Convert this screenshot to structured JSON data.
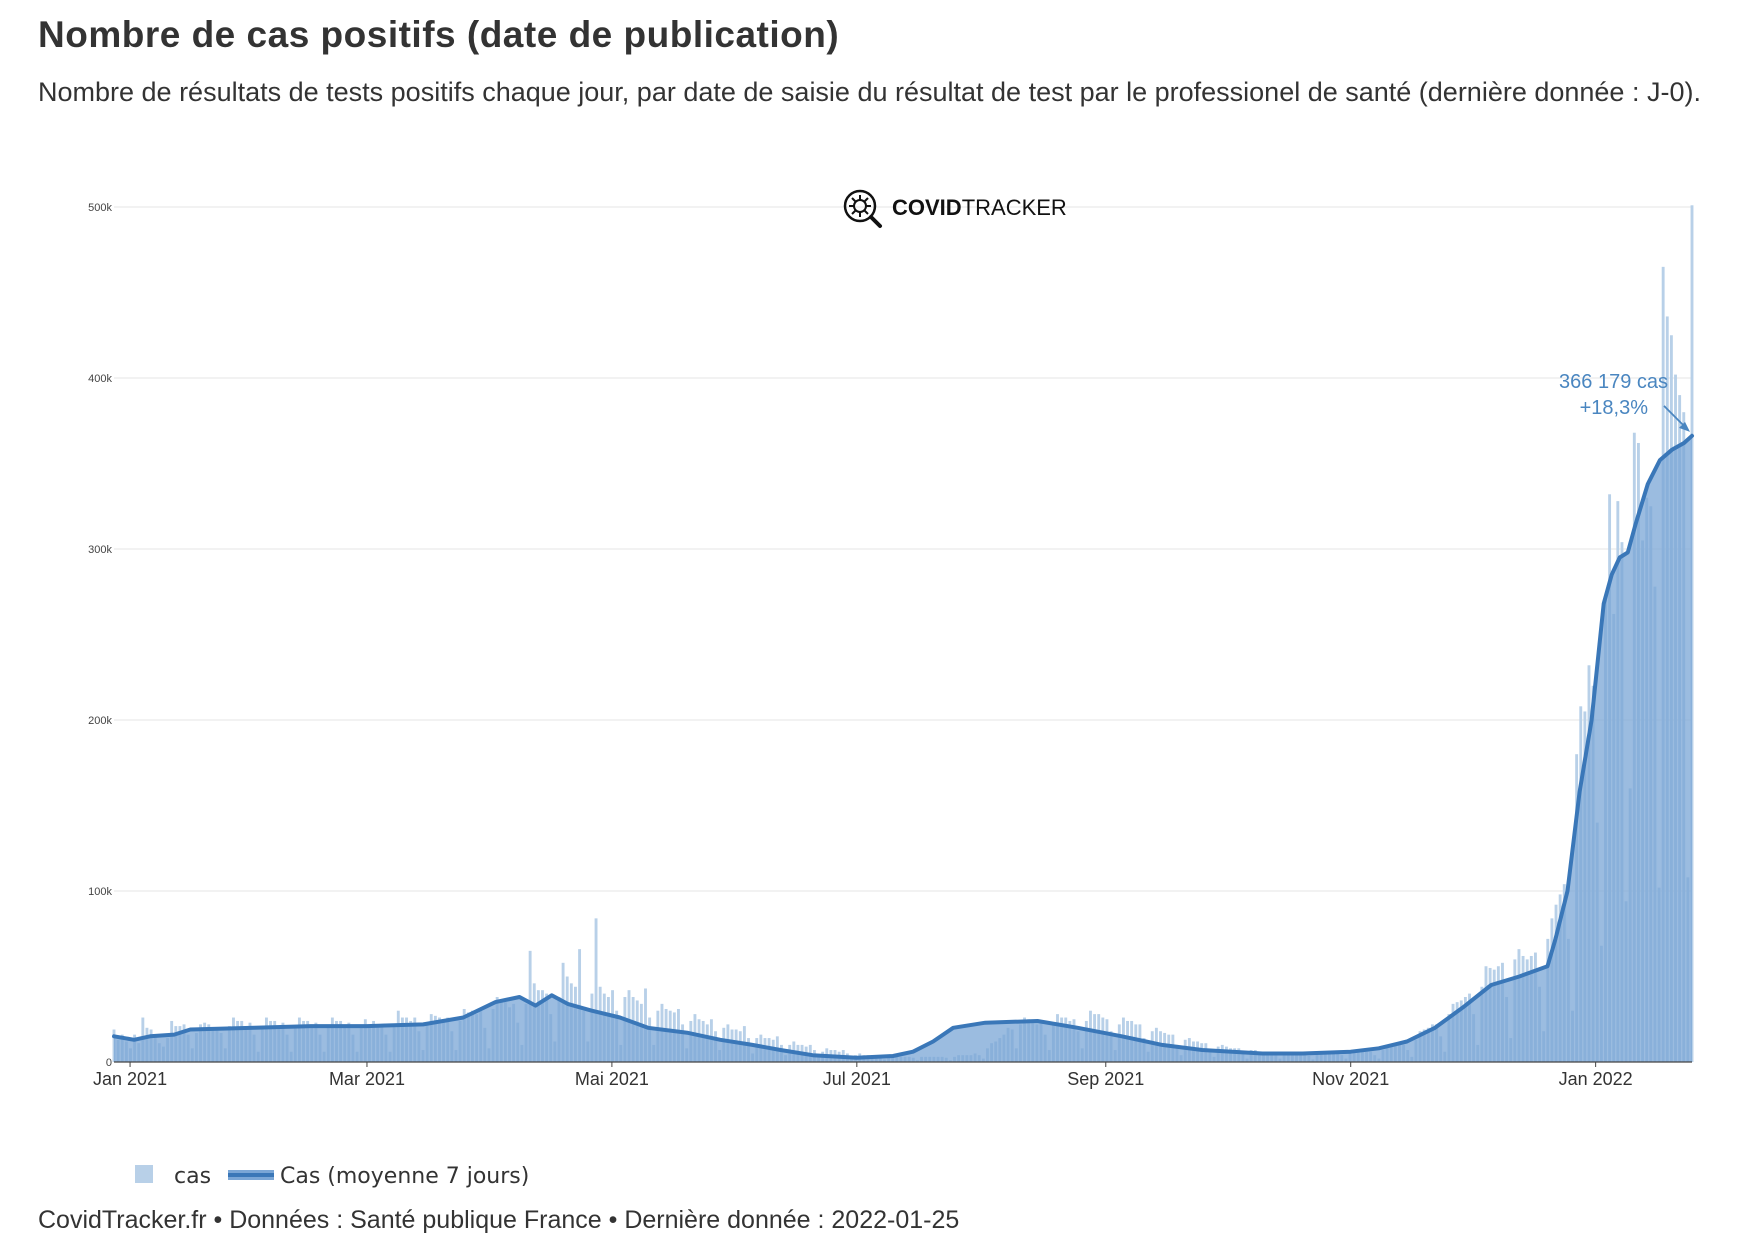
{
  "header": {
    "title": "Nombre de cas positifs (date de publication)",
    "subtitle": "Nombre de résultats de tests positifs chaque jour, par date de saisie du résultat de test par le professionel de santé (dernière donnée : J-0)."
  },
  "logo": {
    "bold": "COVID",
    "light": "TRACKER",
    "icon": "virus-magnifier-icon"
  },
  "footer": {
    "text": "CovidTracker.fr • Données : Santé publique France • Dernière donnée : 2022-01-25"
  },
  "chart_data": {
    "type": "bar",
    "xaxis": {
      "start_date": "2020-12-28",
      "end_date": "2022-01-25",
      "ticks": [
        {
          "label": "Jan 2021",
          "date": "2021-01-01"
        },
        {
          "label": "Mar 2021",
          "date": "2021-03-01"
        },
        {
          "label": "Mai 2021",
          "date": "2021-05-01"
        },
        {
          "label": "Jul 2021",
          "date": "2021-07-01"
        },
        {
          "label": "Sep 2021",
          "date": "2021-09-01"
        },
        {
          "label": "Nov 2021",
          "date": "2021-11-01"
        },
        {
          "label": "Jan 2022",
          "date": "2022-01-01"
        }
      ]
    },
    "yaxis": {
      "range": [
        0,
        500000
      ],
      "ticks": [
        {
          "label": "0",
          "value": 0
        },
        {
          "label": "100k",
          "value": 100000
        },
        {
          "label": "200k",
          "value": 200000
        },
        {
          "label": "300k",
          "value": 300000
        },
        {
          "label": "400k",
          "value": 400000
        },
        {
          "label": "500k",
          "value": 500000
        }
      ]
    },
    "grid": true,
    "legend": {
      "position": "bottom-left",
      "items": [
        {
          "label": "cas",
          "type": "bar",
          "color": "#b8d0e8"
        },
        {
          "label": "Cas (moyenne 7 jours)",
          "type": "line",
          "color": "#3a77b8"
        }
      ]
    },
    "series": [
      {
        "name": "cas",
        "type": "bar",
        "color": "#b8d0e8",
        "start_date": "2020-12-28",
        "values": [
          19000,
          13000,
          16000,
          12000,
          8000,
          16000,
          11000,
          26000,
          20000,
          19000,
          16000,
          11000,
          9000,
          14000,
          24000,
          21000,
          21000,
          22000,
          16000,
          8000,
          17000,
          22000,
          23000,
          22000,
          20000,
          20000,
          17000,
          8000,
          21000,
          26000,
          24000,
          24000,
          21000,
          23000,
          16000,
          6000,
          21000,
          26000,
          24000,
          24000,
          21000,
          23000,
          16000,
          6000,
          21000,
          26000,
          24000,
          24000,
          21000,
          23000,
          16000,
          6000,
          21000,
          26000,
          24000,
          24000,
          21000,
          23000,
          16000,
          6000,
          20000,
          25000,
          22000,
          24000,
          22000,
          22000,
          16000,
          6000,
          22000,
          30000,
          26000,
          26000,
          24000,
          26000,
          18000,
          7000,
          23000,
          28000,
          27000,
          26000,
          24000,
          26000,
          18000,
          7000,
          24000,
          31000,
          29000,
          30000,
          28000,
          30000,
          20000,
          8000,
          31000,
          38000,
          35000,
          35000,
          32000,
          34000,
          23000,
          10000,
          34000,
          65000,
          46000,
          42000,
          42000,
          40000,
          28000,
          12000,
          38000,
          58000,
          50000,
          46000,
          44000,
          66000,
          30000,
          12000,
          40000,
          84000,
          44000,
          40000,
          38000,
          42000,
          30000,
          10000,
          38000,
          42000,
          38000,
          36000,
          34000,
          43000,
          26000,
          10000,
          30000,
          34000,
          31000,
          30000,
          29000,
          31000,
          22000,
          8000,
          24000,
          28000,
          25000,
          24000,
          22000,
          25000,
          18000,
          7000,
          20000,
          22000,
          19000,
          19000,
          18000,
          21000,
          14000,
          5000,
          14000,
          16000,
          14000,
          14000,
          13000,
          15000,
          10000,
          4000,
          10000,
          12000,
          10000,
          10000,
          9000,
          10000,
          7000,
          3000,
          6000,
          8000,
          7000,
          7000,
          6000,
          7000,
          5000,
          2000,
          4000,
          5000,
          4000,
          4000,
          4000,
          4000,
          3000,
          1500,
          3000,
          4000,
          3000,
          3000,
          3000,
          3000,
          2500,
          1000,
          3000,
          3000,
          3000,
          3000,
          3000,
          3000,
          2500,
          1000,
          3000,
          4000,
          4000,
          4000,
          4000,
          5000,
          4000,
          2000,
          8000,
          11000,
          12000,
          14000,
          16000,
          20000,
          19000,
          8000,
          22000,
          26000,
          25000,
          24000,
          22000,
          23000,
          16000,
          7000,
          22000,
          28000,
          26000,
          26000,
          24000,
          25000,
          18000,
          8000,
          24000,
          30000,
          28000,
          28000,
          26000,
          25000,
          18000,
          7000,
          22000,
          26000,
          24000,
          24000,
          22000,
          22000,
          14000,
          6000,
          18000,
          20000,
          18000,
          17000,
          16000,
          16000,
          10000,
          4000,
          13000,
          14000,
          12000,
          12000,
          11000,
          11000,
          7000,
          3000,
          9000,
          10000,
          9000,
          8000,
          8000,
          8000,
          5000,
          2000,
          7000,
          7000,
          6000,
          6000,
          6000,
          6000,
          4000,
          2000,
          5000,
          6000,
          5000,
          5000,
          5000,
          5000,
          3500,
          1500,
          5000,
          6000,
          5000,
          5000,
          5000,
          5000,
          4000,
          2000,
          5000,
          6000,
          6000,
          6000,
          6000,
          6000,
          4000,
          2000,
          7000,
          9000,
          9000,
          10000,
          10000,
          10000,
          7000,
          3000,
          13000,
          18000,
          19000,
          20000,
          22000,
          22000,
          15000,
          6000,
          28000,
          34000,
          35000,
          36000,
          38000,
          40000,
          28000,
          10000,
          44000,
          56000,
          55000,
          54000,
          56000,
          58000,
          38000,
          14000,
          60000,
          66000,
          62000,
          60000,
          62000,
          64000,
          44000,
          18000,
          72000,
          84000,
          92000,
          98000,
          104000,
          72000,
          30000,
          180000,
          208000,
          205000,
          232000,
          220000,
          140000,
          68000,
          270000,
          332000,
          262000,
          328000,
          304000,
          94000,
          160000,
          368000,
          362000,
          305000,
          330000,
          325000,
          278000,
          102000,
          465000,
          436000,
          425000,
          402000,
          390000,
          380000,
          108000,
          501000
        ]
      },
      {
        "name": "Cas (moyenne 7 jours)",
        "type": "line",
        "color": "#3a77b8",
        "points": [
          [
            "2020-12-28",
            15000
          ],
          [
            "2021-01-02",
            13000
          ],
          [
            "2021-01-06",
            15000
          ],
          [
            "2021-01-12",
            16000
          ],
          [
            "2021-01-16",
            19000
          ],
          [
            "2021-02-01",
            20000
          ],
          [
            "2021-02-15",
            21000
          ],
          [
            "2021-03-01",
            21000
          ],
          [
            "2021-03-15",
            22000
          ],
          [
            "2021-03-25",
            26000
          ],
          [
            "2021-04-02",
            35000
          ],
          [
            "2021-04-08",
            38000
          ],
          [
            "2021-04-12",
            33000
          ],
          [
            "2021-04-16",
            39000
          ],
          [
            "2021-04-20",
            34000
          ],
          [
            "2021-04-26",
            30000
          ],
          [
            "2021-05-03",
            26000
          ],
          [
            "2021-05-10",
            20000
          ],
          [
            "2021-05-20",
            17000
          ],
          [
            "2021-05-28",
            13000
          ],
          [
            "2021-06-05",
            10000
          ],
          [
            "2021-06-12",
            7000
          ],
          [
            "2021-06-20",
            4000
          ],
          [
            "2021-07-01",
            2500
          ],
          [
            "2021-07-10",
            3500
          ],
          [
            "2021-07-15",
            6000
          ],
          [
            "2021-07-20",
            12000
          ],
          [
            "2021-07-25",
            20000
          ],
          [
            "2021-08-02",
            23000
          ],
          [
            "2021-08-15",
            24000
          ],
          [
            "2021-08-25",
            20000
          ],
          [
            "2021-09-05",
            15000
          ],
          [
            "2021-09-15",
            10000
          ],
          [
            "2021-09-25",
            7000
          ],
          [
            "2021-10-10",
            5000
          ],
          [
            "2021-10-20",
            5000
          ],
          [
            "2021-11-01",
            6000
          ],
          [
            "2021-11-08",
            8000
          ],
          [
            "2021-11-15",
            12000
          ],
          [
            "2021-11-22",
            20000
          ],
          [
            "2021-11-29",
            32000
          ],
          [
            "2021-12-06",
            45000
          ],
          [
            "2021-12-13",
            50000
          ],
          [
            "2021-12-20",
            56000
          ],
          [
            "2021-12-22",
            72000
          ],
          [
            "2021-12-25",
            100000
          ],
          [
            "2021-12-28",
            158000
          ],
          [
            "2021-12-31",
            200000
          ],
          [
            "2022-01-03",
            268000
          ],
          [
            "2022-01-05",
            285000
          ],
          [
            "2022-01-07",
            295000
          ],
          [
            "2022-01-09",
            298000
          ],
          [
            "2022-01-11",
            315000
          ],
          [
            "2022-01-14",
            338000
          ],
          [
            "2022-01-17",
            352000
          ],
          [
            "2022-01-20",
            358000
          ],
          [
            "2022-01-23",
            362000
          ],
          [
            "2022-01-25",
            366179
          ]
        ]
      }
    ],
    "annotation": {
      "date": "2022-01-25",
      "value": 366179,
      "line1": "366 179 cas",
      "line2": "+18,3%"
    }
  }
}
